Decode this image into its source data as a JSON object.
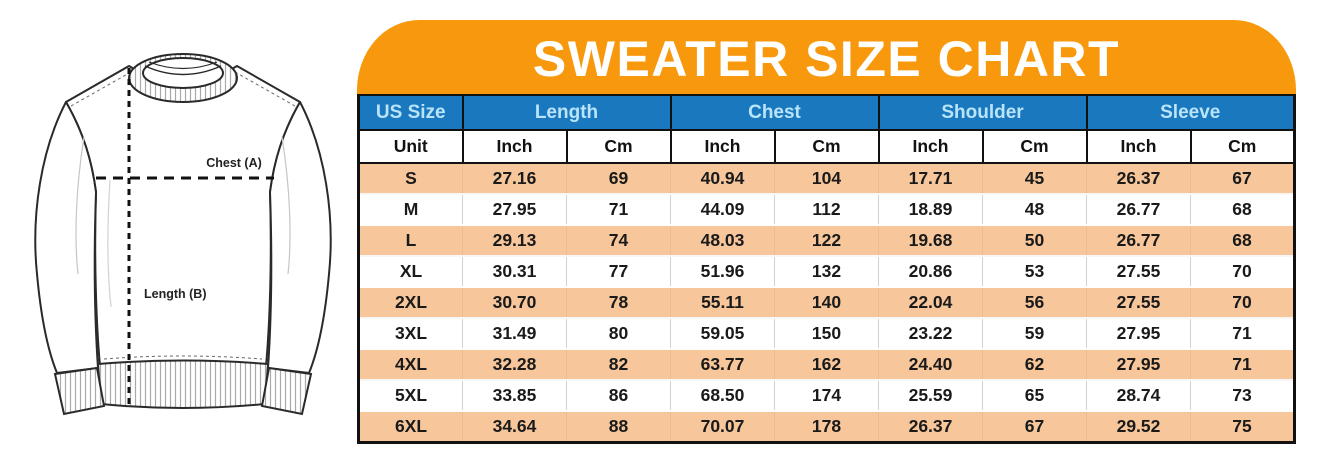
{
  "banner": {
    "title": "SWEATER SIZE CHART"
  },
  "diagram": {
    "labels": {
      "chest": "Chest (A)",
      "length": "Length (B)"
    }
  },
  "size_table": {
    "column_groups": [
      {
        "label": "US Size",
        "span": 1
      },
      {
        "label": "Length",
        "span": 2
      },
      {
        "label": "Chest",
        "span": 2
      },
      {
        "label": "Shoulder",
        "span": 2
      },
      {
        "label": "Sleeve",
        "span": 2
      }
    ],
    "unit_row": [
      "Unit",
      "Inch",
      "Cm",
      "Inch",
      "Cm",
      "Inch",
      "Cm",
      "Inch",
      "Cm"
    ]
  },
  "chart_data": {
    "type": "table",
    "title": "SWEATER SIZE CHART",
    "columns": [
      "US Size",
      "Length (Inch)",
      "Length (Cm)",
      "Chest (Inch)",
      "Chest (Cm)",
      "Shoulder (Inch)",
      "Shoulder (Cm)",
      "Sleeve (Inch)",
      "Sleeve (Cm)"
    ],
    "rows": [
      [
        "S",
        "27.16",
        "69",
        "40.94",
        "104",
        "17.71",
        "45",
        "26.37",
        "67"
      ],
      [
        "M",
        "27.95",
        "71",
        "44.09",
        "112",
        "18.89",
        "48",
        "26.77",
        "68"
      ],
      [
        "L",
        "29.13",
        "74",
        "48.03",
        "122",
        "19.68",
        "50",
        "26.77",
        "68"
      ],
      [
        "XL",
        "30.31",
        "77",
        "51.96",
        "132",
        "20.86",
        "53",
        "27.55",
        "70"
      ],
      [
        "2XL",
        "30.70",
        "78",
        "55.11",
        "140",
        "22.04",
        "56",
        "27.55",
        "70"
      ],
      [
        "3XL",
        "31.49",
        "80",
        "59.05",
        "150",
        "23.22",
        "59",
        "27.95",
        "71"
      ],
      [
        "4XL",
        "32.28",
        "82",
        "63.77",
        "162",
        "24.40",
        "62",
        "27.95",
        "71"
      ],
      [
        "5XL",
        "33.85",
        "86",
        "68.50",
        "174",
        "25.59",
        "65",
        "28.74",
        "73"
      ],
      [
        "6XL",
        "34.64",
        "88",
        "70.07",
        "178",
        "26.37",
        "67",
        "29.52",
        "75"
      ]
    ]
  },
  "colors": {
    "banner_orange": "#F8980D",
    "header_blue": "#1A78BE",
    "header_text_light": "#B9E4FA",
    "row_peach": "#F7C79B",
    "table_border_black": "#111111",
    "text_dark": "#1A1A1A"
  }
}
